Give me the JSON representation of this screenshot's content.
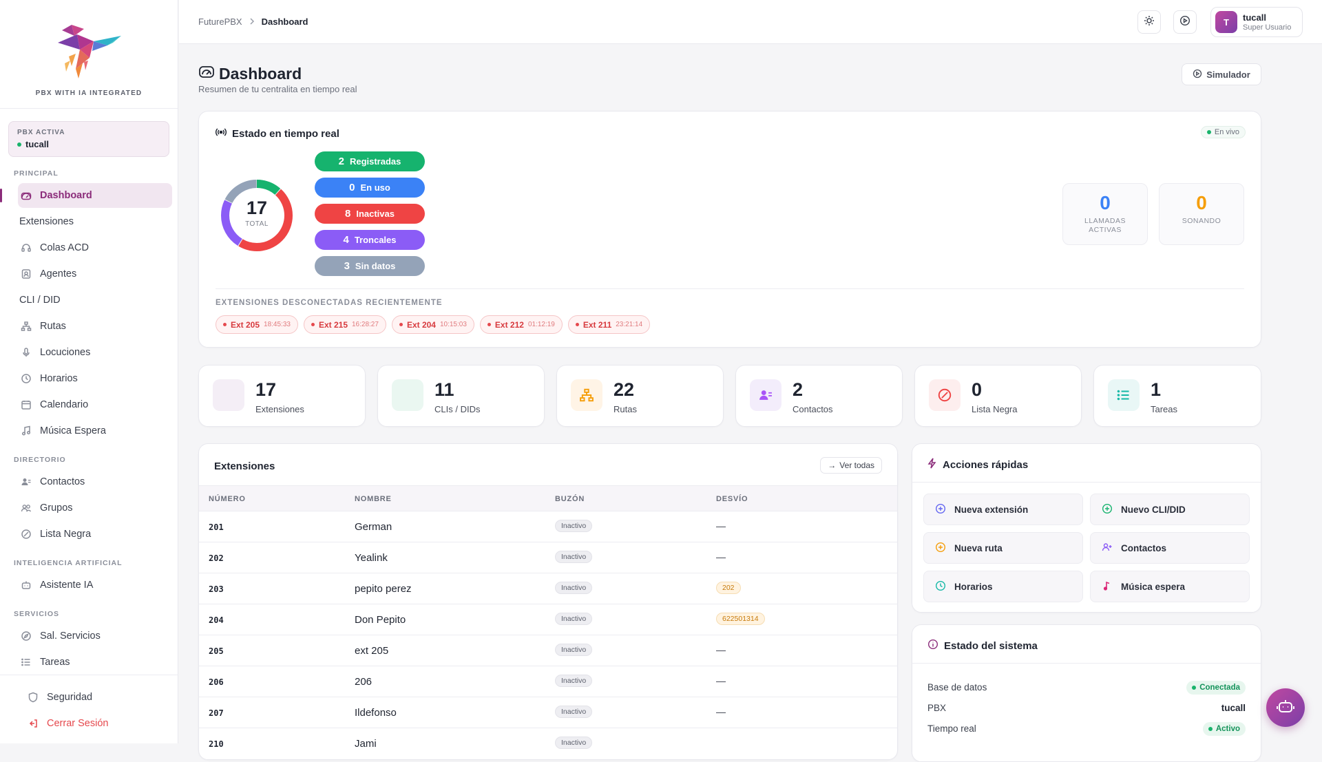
{
  "brand": {
    "tagline": "PBX WITH IA INTEGRATED"
  },
  "pbx": {
    "label": "PBX ACTIVA",
    "name": "tucall"
  },
  "sidebar": {
    "sections": {
      "principal": "PRINCIPAL",
      "directorio": "DIRECTORIO",
      "ia": "INTELIGENCIA ARTIFICIAL",
      "servicios": "SERVICIOS"
    },
    "items": {
      "dashboard": "Dashboard",
      "extensiones": "Extensiones",
      "colas": "Colas ACD",
      "agentes": "Agentes",
      "cli": "CLI / DID",
      "rutas": "Rutas",
      "locuciones": "Locuciones",
      "horarios": "Horarios",
      "calendario": "Calendario",
      "musica": "Música Espera",
      "contactos": "Contactos",
      "grupos": "Grupos",
      "lista_negra": "Lista Negra",
      "asistente": "Asistente IA",
      "sal_servicios": "Sal. Servicios",
      "tareas": "Tareas"
    },
    "bottom": {
      "seguridad": "Seguridad",
      "logout": "Cerrar Sesión"
    }
  },
  "topbar": {
    "breadcrumb_root": "FuturePBX",
    "breadcrumb_current": "Dashboard",
    "user_initial": "T",
    "user_name": "tucall",
    "user_role": "Super Usuario"
  },
  "page": {
    "title": "Dashboard",
    "subtitle": "Resumen de tu centralita en tiempo real",
    "simulator_button": "Simulador"
  },
  "realtime": {
    "title": "Estado en tiempo real",
    "live_label": "En vivo",
    "total": "17",
    "total_label": "TOTAL",
    "pills": [
      {
        "n": "2",
        "label": "Registradas",
        "color": "#16b36e"
      },
      {
        "n": "0",
        "label": "En uso",
        "color": "#3b82f6"
      },
      {
        "n": "8",
        "label": "Inactivas",
        "color": "#ef4444"
      },
      {
        "n": "4",
        "label": "Troncales",
        "color": "#8b5cf6"
      },
      {
        "n": "3",
        "label": "Sin datos",
        "color": "#94a3b8"
      }
    ],
    "active_calls": {
      "value": "0",
      "label": "LLAMADAS ACTIVAS",
      "color": "#3b82f6"
    },
    "ringing": {
      "value": "0",
      "label": "SONANDO",
      "color": "#f59e0b"
    },
    "disconnected_title": "EXTENSIONES DESCONECTADAS RECIENTEMENTE",
    "disconnected": [
      {
        "ext": "Ext 205",
        "time": "18:45:33"
      },
      {
        "ext": "Ext 215",
        "time": "16:28:27"
      },
      {
        "ext": "Ext 204",
        "time": "10:15:03"
      },
      {
        "ext": "Ext 212",
        "time": "01:12:19"
      },
      {
        "ext": "Ext 211",
        "time": "23:21:14"
      }
    ]
  },
  "stats": [
    {
      "value": "17",
      "label": "Extensiones",
      "icon": "phone-icon",
      "bg": "#f4eef6"
    },
    {
      "value": "11",
      "label": "CLIs / DIDs",
      "icon": "did-icon",
      "bg": "#eaf7f1"
    },
    {
      "value": "22",
      "label": "Rutas",
      "icon": "routes-icon",
      "bg": "#fff4e6"
    },
    {
      "value": "2",
      "label": "Contactos",
      "icon": "contacts-icon",
      "bg": "#f3edfb"
    },
    {
      "value": "0",
      "label": "Lista Negra",
      "icon": "block-icon",
      "bg": "#fdeeee"
    },
    {
      "value": "1",
      "label": "Tareas",
      "icon": "list-icon",
      "bg": "#e9f7f6"
    }
  ],
  "extensions_table": {
    "title": "Extensiones",
    "view_all": "Ver todas",
    "headers": [
      "NÚMERO",
      "NOMBRE",
      "BUZÓN",
      "DESVÍO"
    ],
    "rows": [
      {
        "num": "201",
        "name": "German",
        "mailbox": "Inactivo",
        "forward": "—",
        "forward_badge": false
      },
      {
        "num": "202",
        "name": "Yealink",
        "mailbox": "Inactivo",
        "forward": "—",
        "forward_badge": false
      },
      {
        "num": "203",
        "name": "pepito perez",
        "mailbox": "Inactivo",
        "forward": "202",
        "forward_badge": true
      },
      {
        "num": "204",
        "name": "Don Pepito",
        "mailbox": "Inactivo",
        "forward": "622501314",
        "forward_badge": true
      },
      {
        "num": "205",
        "name": "ext 205",
        "mailbox": "Inactivo",
        "forward": "—",
        "forward_badge": false
      },
      {
        "num": "206",
        "name": "206",
        "mailbox": "Inactivo",
        "forward": "—",
        "forward_badge": false
      },
      {
        "num": "207",
        "name": "Ildefonso",
        "mailbox": "Inactivo",
        "forward": "—",
        "forward_badge": false
      },
      {
        "num": "210",
        "name": "Jami",
        "mailbox": "Inactivo",
        "forward": "",
        "forward_badge": false
      }
    ]
  },
  "quick_actions": {
    "title": "Acciones rápidas",
    "items": [
      {
        "label": "Nueva extensión",
        "icon": "plus-circle-icon",
        "color": "#6366f1"
      },
      {
        "label": "Nuevo CLI/DID",
        "icon": "plus-circle-icon",
        "color": "#16b36e"
      },
      {
        "label": "Nueva ruta",
        "icon": "plus-circle-icon",
        "color": "#f59e0b"
      },
      {
        "label": "Contactos",
        "icon": "user-plus-icon",
        "color": "#8b5cf6"
      },
      {
        "label": "Horarios",
        "icon": "clock-icon",
        "color": "#14b8a6"
      },
      {
        "label": "Música espera",
        "icon": "music-icon",
        "color": "#db2777"
      }
    ]
  },
  "system_status": {
    "title": "Estado del sistema",
    "db_label": "Base de datos",
    "db_value": "Conectada",
    "pbx_label": "PBX",
    "pbx_value": "tucall",
    "rt_label": "Tiempo real",
    "rt_value": "Activo"
  }
}
